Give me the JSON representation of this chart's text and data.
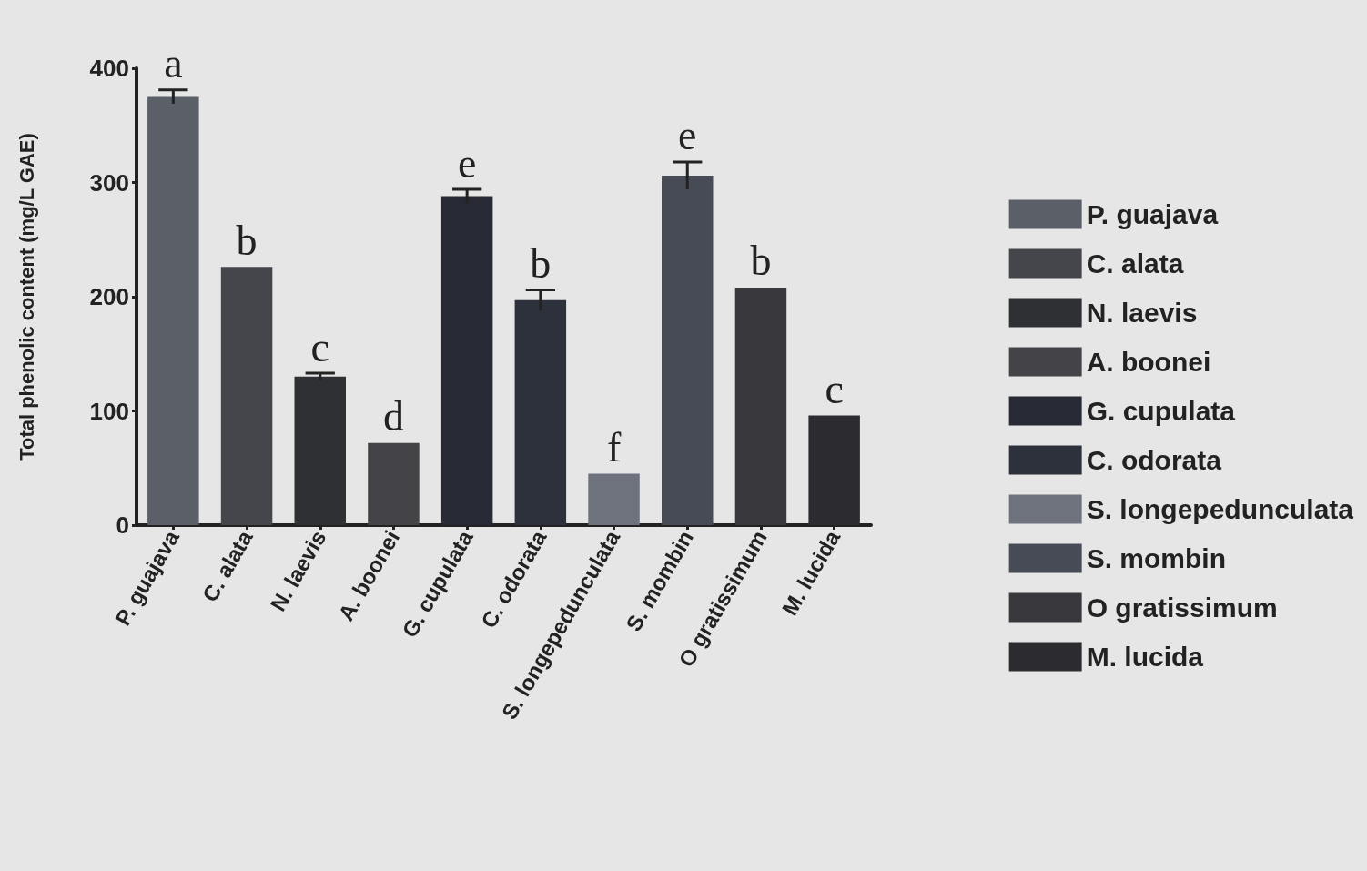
{
  "chart_data": {
    "type": "bar",
    "ylabel": "Total phenolic content (mg/L GAE)",
    "categories": [
      "P. guajava",
      "C. alata",
      "N. laevis",
      "A. boonei",
      "G. cupulata",
      "C. odorata",
      "S. longepedunculata",
      "S. mombin",
      "O gratissimum",
      "M. lucida"
    ],
    "series": [
      {
        "name": "P. guajava",
        "color": "#5a5f68",
        "values": [
          375,
          null,
          null,
          null,
          null,
          null,
          null,
          null,
          null,
          null
        ],
        "errors": [
          6,
          null,
          null,
          null,
          null,
          null,
          null,
          null,
          null,
          null
        ]
      },
      {
        "name": "C. alata",
        "color": "#45464c",
        "values": [
          null,
          226,
          null,
          null,
          null,
          null,
          null,
          null,
          null,
          null
        ]
      },
      {
        "name": "N. laevis",
        "color": "#2f3034",
        "values": [
          null,
          null,
          130,
          null,
          null,
          null,
          null,
          null,
          null,
          null
        ],
        "errors": [
          null,
          null,
          3,
          null,
          null,
          null,
          null,
          null,
          null,
          null
        ]
      },
      {
        "name": "A. boonei",
        "color": "#444448",
        "values": [
          null,
          null,
          null,
          72,
          null,
          null,
          null,
          null,
          null,
          null
        ]
      },
      {
        "name": "G. cupulata",
        "color": "#272935",
        "values": [
          null,
          null,
          null,
          null,
          288,
          null,
          null,
          null,
          null,
          null
        ],
        "errors": [
          null,
          null,
          null,
          null,
          6,
          null,
          null,
          null,
          null,
          null
        ]
      },
      {
        "name": "C. odorata",
        "color": "#2d313b",
        "values": [
          null,
          null,
          null,
          null,
          null,
          197,
          null,
          null,
          null,
          null
        ],
        "errors": [
          null,
          null,
          null,
          null,
          null,
          9,
          null,
          null,
          null,
          null
        ]
      },
      {
        "name": "S. longepedunculata",
        "color": "#6e727c",
        "values": [
          null,
          null,
          null,
          null,
          null,
          null,
          45,
          null,
          null,
          null
        ]
      },
      {
        "name": "S. mombin",
        "color": "#474b55",
        "values": [
          null,
          null,
          null,
          null,
          null,
          null,
          null,
          306,
          null,
          null
        ],
        "errors": [
          null,
          null,
          null,
          null,
          null,
          null,
          null,
          12,
          null,
          null
        ]
      },
      {
        "name": "O gratissimum",
        "color": "#38383d",
        "values": [
          null,
          null,
          null,
          null,
          null,
          null,
          null,
          null,
          208,
          null
        ]
      },
      {
        "name": "M. lucida",
        "color": "#2c2c30",
        "values": [
          null,
          null,
          null,
          null,
          null,
          null,
          null,
          null,
          null,
          96
        ]
      }
    ],
    "annotations": [
      {
        "text": "a",
        "x": "P. guajava",
        "y": 381
      },
      {
        "text": "b",
        "x": "C. alata",
        "y": 226
      },
      {
        "text": "c",
        "x": "N. laevis",
        "y": 133
      },
      {
        "text": "d",
        "x": "A. boonei",
        "y": 72
      },
      {
        "text": "e",
        "x": "G. cupulata",
        "y": 294
      },
      {
        "text": "b",
        "x": "C. odorata",
        "y": 206
      },
      {
        "text": "f",
        "x": "S. longepedunculata",
        "y": 45
      },
      {
        "text": "e",
        "x": "S. mombin",
        "y": 318
      },
      {
        "text": "b",
        "x": "O gratissimum",
        "y": 208
      },
      {
        "text": "c",
        "x": "M. lucida",
        "y": 96
      }
    ],
    "ylim": [
      0,
      400
    ],
    "yticks": [
      0,
      100,
      200,
      300,
      400
    ],
    "grid": false,
    "legend": "right"
  }
}
